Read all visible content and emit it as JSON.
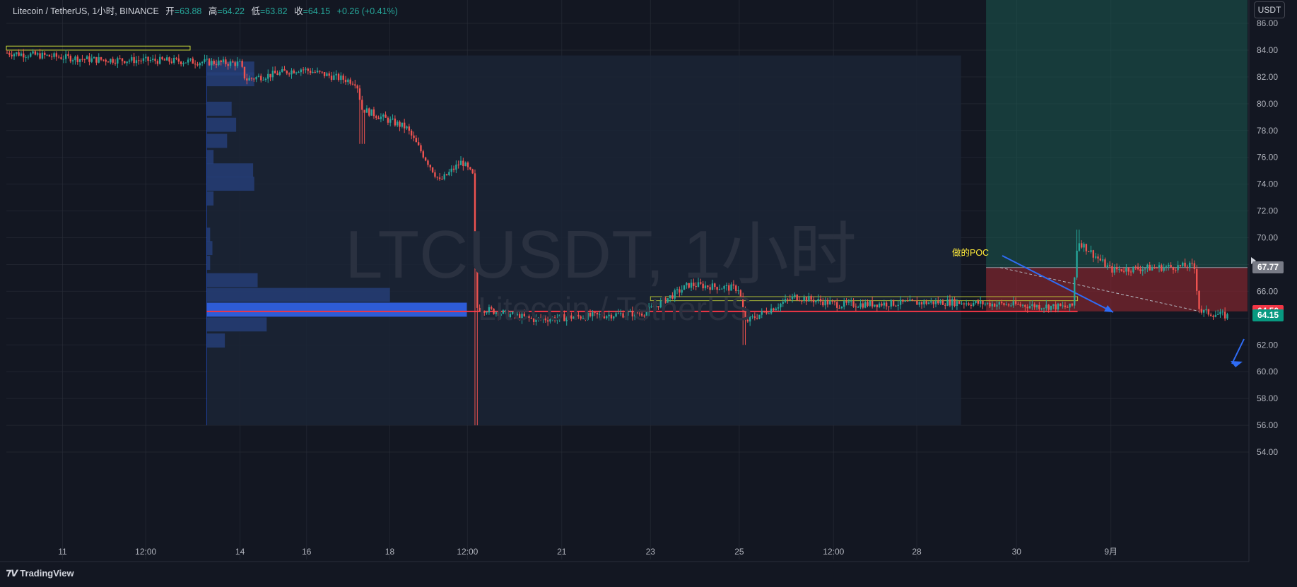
{
  "legend": {
    "symbol": "Litecoin / TetherUS, 1小时, BINANCE",
    "open_label": "开",
    "open": "=63.88",
    "high_label": "高",
    "high": "=64.22",
    "low_label": "低",
    "low": "=63.82",
    "close_label": "收",
    "close": "=64.15",
    "change": "+0.26 (+0.41%)"
  },
  "currency_button": "USDT",
  "watermark": {
    "line1": "LTCUSDT, 1小时",
    "line2": "Litecoin / TetherUS"
  },
  "annotation": "做的POC",
  "brand": "TradingView",
  "price_tags": [
    {
      "label": "67.77",
      "color": "#787b86"
    },
    {
      "label": "64.50",
      "color": "#f23645"
    },
    {
      "label": "64.15",
      "color": "#089981"
    }
  ],
  "colors": {
    "up": "#26a69a",
    "down": "#ef5350",
    "background": "#131722",
    "grid": "#2a2e39",
    "volume_profile": "#2962ff",
    "poc_line": "#f23645"
  },
  "chart_data": {
    "type": "candlestick",
    "title": "LTCUSDT, 1小时",
    "ylim": [
      53,
      87
    ],
    "y_ticks": [
      "86.00",
      "84.00",
      "82.00",
      "80.00",
      "78.00",
      "76.00",
      "74.00",
      "72.00",
      "70.00",
      "68.00",
      "66.00",
      "64.00",
      "62.00",
      "60.00",
      "58.00",
      "56.00",
      "54.00"
    ],
    "x_ticks": [
      "11",
      "12:00",
      "14",
      "16",
      "18",
      "12:00",
      "21",
      "23",
      "25",
      "12:00",
      "28",
      "30",
      "9月"
    ],
    "price_path": [
      {
        "d": 0,
        "p": 83.8
      },
      {
        "d": 1.5,
        "p": 83.3
      },
      {
        "d": 3,
        "p": 83.2
      },
      {
        "d": 4.2,
        "p": 83.0
      },
      {
        "d": 4.3,
        "p": 81.8
      },
      {
        "d": 5.3,
        "p": 82.6
      },
      {
        "d": 6.3,
        "p": 81.6
      },
      {
        "d": 6.4,
        "p": 79.6
      },
      {
        "d": 7.2,
        "p": 78.2
      },
      {
        "d": 7.8,
        "p": 74.2
      },
      {
        "d": 8.2,
        "p": 75.7
      },
      {
        "d": 8.4,
        "p": 74.6
      },
      {
        "d": 8.45,
        "p": 64.8
      },
      {
        "d": 9.5,
        "p": 63.9
      },
      {
        "d": 11.5,
        "p": 64.4
      },
      {
        "d": 12.3,
        "p": 66.5
      },
      {
        "d": 13.2,
        "p": 66.2
      },
      {
        "d": 13.3,
        "p": 63.7
      },
      {
        "d": 14.2,
        "p": 65.6
      },
      {
        "d": 15.0,
        "p": 65.0
      },
      {
        "d": 17.0,
        "p": 65.2
      },
      {
        "d": 19.2,
        "p": 64.8
      },
      {
        "d": 19.3,
        "p": 69.8
      },
      {
        "d": 19.9,
        "p": 67.6
      },
      {
        "d": 21.4,
        "p": 67.9
      },
      {
        "d": 21.5,
        "p": 64.5
      },
      {
        "d": 22.0,
        "p": 64.15
      }
    ],
    "volume_profile": [
      {
        "price": 82.6,
        "width": 0.42
      },
      {
        "price": 81.8,
        "width": 0.42
      },
      {
        "price": 79.6,
        "width": 0.22
      },
      {
        "price": 78.4,
        "width": 0.26
      },
      {
        "price": 77.2,
        "width": 0.18
      },
      {
        "price": 76.0,
        "width": 0.06
      },
      {
        "price": 75.0,
        "width": 0.41
      },
      {
        "price": 74.0,
        "width": 0.42
      },
      {
        "price": 72.9,
        "width": 0.06
      },
      {
        "price": 70.2,
        "width": 0.03
      },
      {
        "price": 69.2,
        "width": 0.05
      },
      {
        "price": 68.1,
        "width": 0.03
      },
      {
        "price": 66.8,
        "width": 0.45
      },
      {
        "price": 65.7,
        "width": 1.62
      },
      {
        "price": 64.6,
        "width": 2.3
      },
      {
        "price": 63.5,
        "width": 0.53
      },
      {
        "price": 62.3,
        "width": 0.16
      }
    ],
    "poc_price": 64.5,
    "position": {
      "entry": 67.77,
      "target": 87.0,
      "stop": 64.5
    },
    "annotation": "做的POC"
  }
}
